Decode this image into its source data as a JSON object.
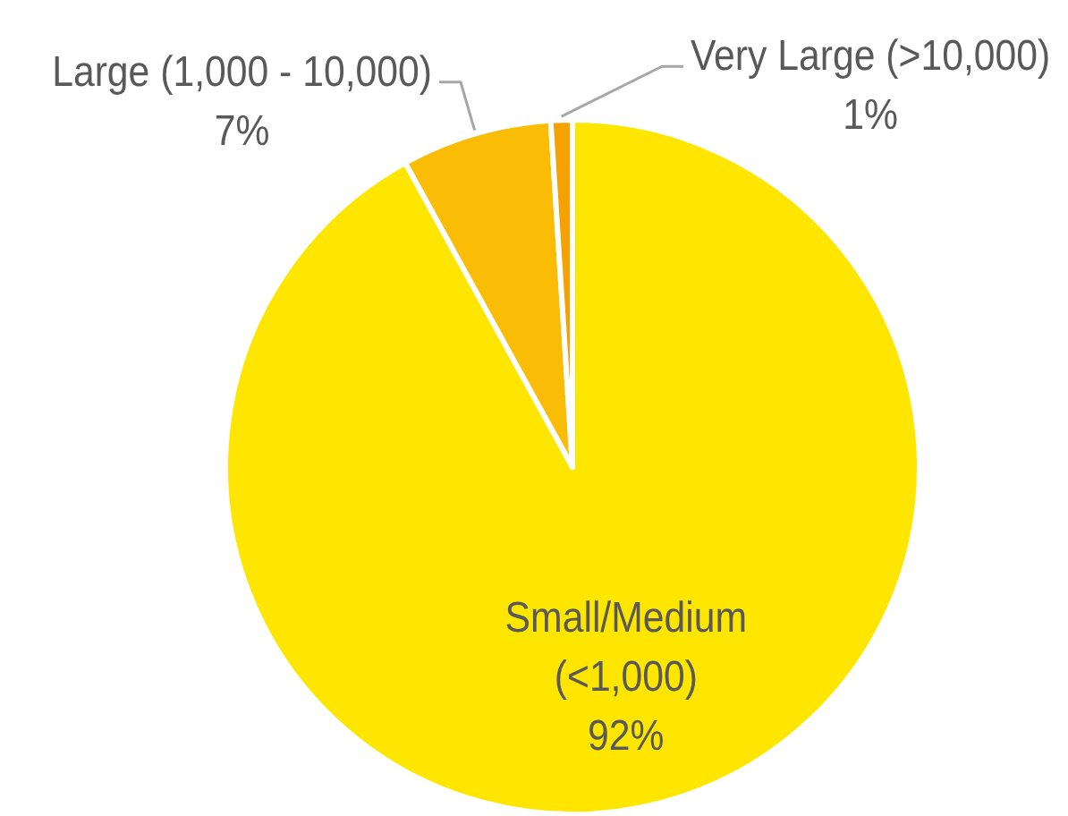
{
  "chart_data": {
    "type": "pie",
    "categories": [
      "Small/Medium (<1,000)",
      "Large (1,000 - 10,000)",
      "Very Large (>10,000)"
    ],
    "values": [
      92,
      7,
      1
    ],
    "colors": [
      "#ffe600",
      "#fbbc05",
      "#f5a200"
    ],
    "value_labels": [
      "92%",
      "7%",
      "1%"
    ]
  }
}
